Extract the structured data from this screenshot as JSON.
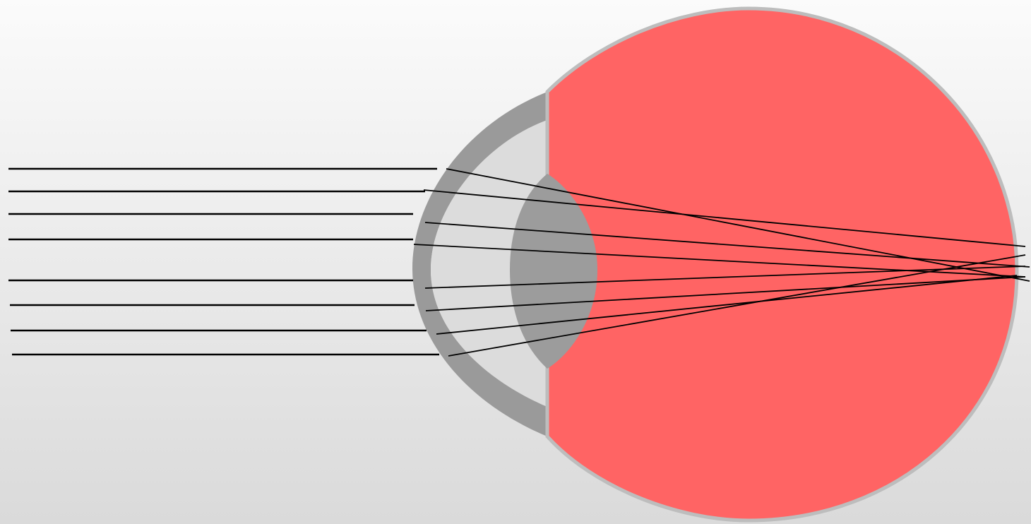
{
  "diagram": {
    "subject": "eye refraction",
    "colors": {
      "background_top": "#fbfbfb",
      "background_bottom": "#dadada",
      "eyeball_fill": "#ff6464",
      "eyeball_outline": "#bdbdbd",
      "cornea": "#9a9a9a",
      "anterior_chamber": "#dcdcdc",
      "lens": "#9c9c9c",
      "ray": "#000000"
    },
    "parts": [
      "eyeball",
      "cornea",
      "anterior-chamber",
      "lens",
      "light-rays"
    ],
    "light_ray_count": 8
  }
}
